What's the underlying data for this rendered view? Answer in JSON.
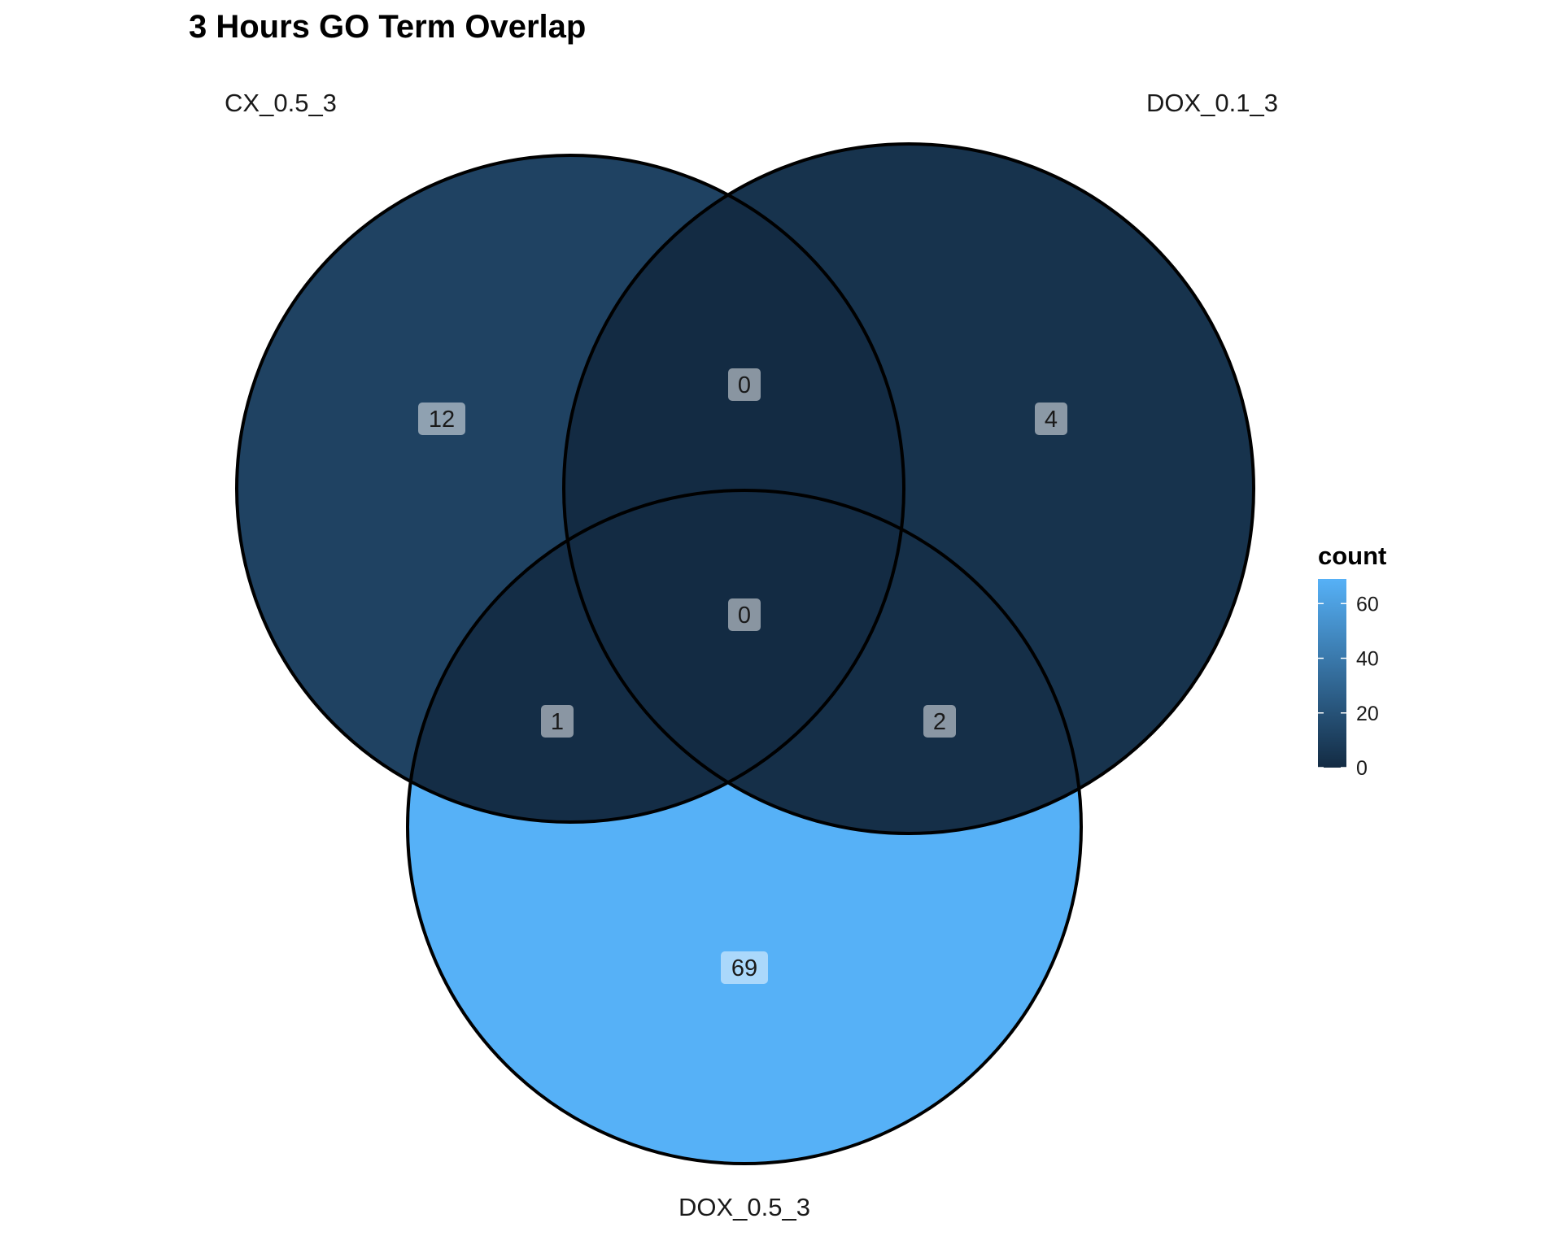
{
  "chart_data": {
    "type": "venn",
    "title": "3 Hours GO Term Overlap",
    "sets": [
      "CX_0.5_3",
      "DOX_0.1_3",
      "DOX_0.5_3"
    ],
    "regions": [
      {
        "sets": [
          "CX_0.5_3"
        ],
        "count": 12
      },
      {
        "sets": [
          "DOX_0.1_3"
        ],
        "count": 4
      },
      {
        "sets": [
          "DOX_0.5_3"
        ],
        "count": 69
      },
      {
        "sets": [
          "CX_0.5_3",
          "DOX_0.1_3"
        ],
        "count": 0
      },
      {
        "sets": [
          "CX_0.5_3",
          "DOX_0.5_3"
        ],
        "count": 1
      },
      {
        "sets": [
          "DOX_0.1_3",
          "DOX_0.5_3"
        ],
        "count": 2
      },
      {
        "sets": [
          "CX_0.5_3",
          "DOX_0.1_3",
          "DOX_0.5_3"
        ],
        "count": 0
      }
    ],
    "legend": {
      "title": "count",
      "ticks": [
        0,
        20,
        40,
        60
      ],
      "range": [
        0,
        69
      ],
      "position": "right",
      "color_low": "#132B43",
      "color_high": "#56B1F7"
    }
  }
}
